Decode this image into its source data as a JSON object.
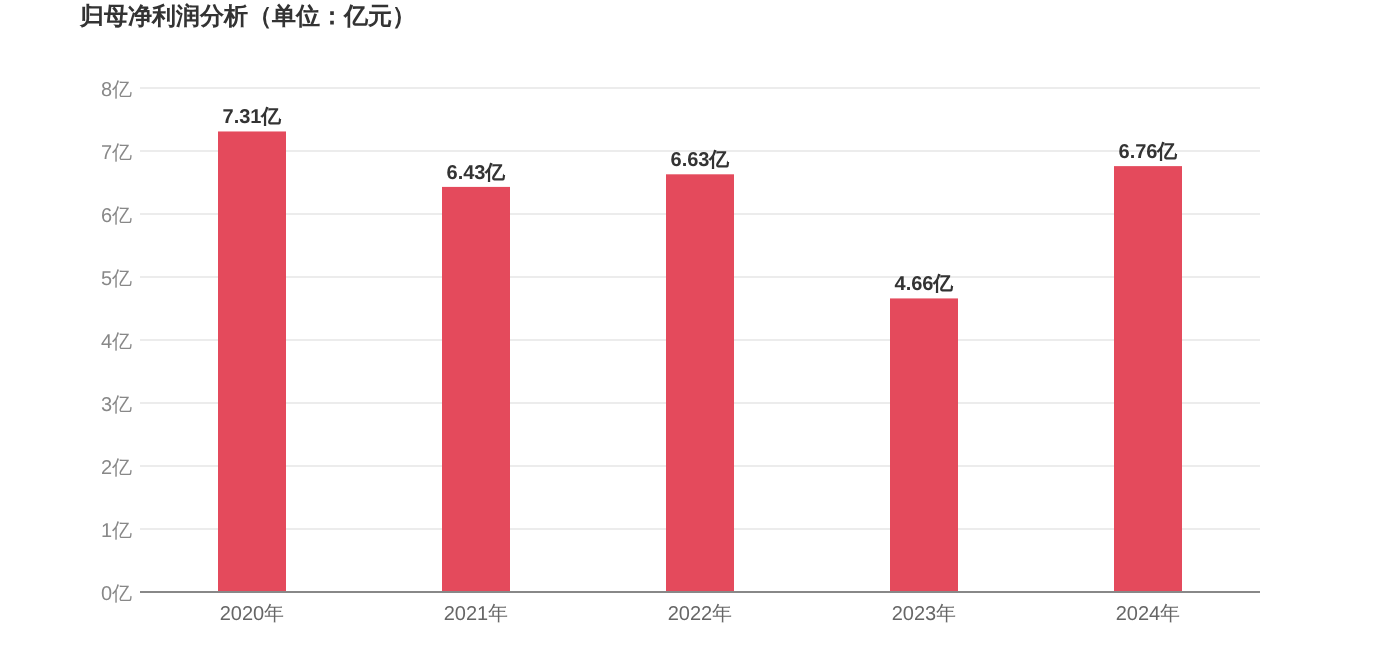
{
  "chart_data": {
    "type": "bar",
    "title": "归母净利润分析（单位：亿元）",
    "categories": [
      "2020年",
      "2021年",
      "2022年",
      "2023年",
      "2024年"
    ],
    "values": [
      7.31,
      6.43,
      6.63,
      4.66,
      6.76
    ],
    "value_labels": [
      "7.31亿",
      "6.43亿",
      "6.63亿",
      "4.66亿",
      "6.76亿"
    ],
    "color": "#e44a5c",
    "ylim": [
      0,
      8
    ],
    "yticks": [
      {
        "value": 0,
        "label": "0亿"
      },
      {
        "value": 1,
        "label": "1亿"
      },
      {
        "value": 2,
        "label": "2亿"
      },
      {
        "value": 3,
        "label": "3亿"
      },
      {
        "value": 4,
        "label": "4亿"
      },
      {
        "value": 5,
        "label": "5亿"
      },
      {
        "value": 6,
        "label": "6亿"
      },
      {
        "value": 7,
        "label": "7亿"
      },
      {
        "value": 8,
        "label": "8亿"
      }
    ],
    "grid": "y"
  }
}
